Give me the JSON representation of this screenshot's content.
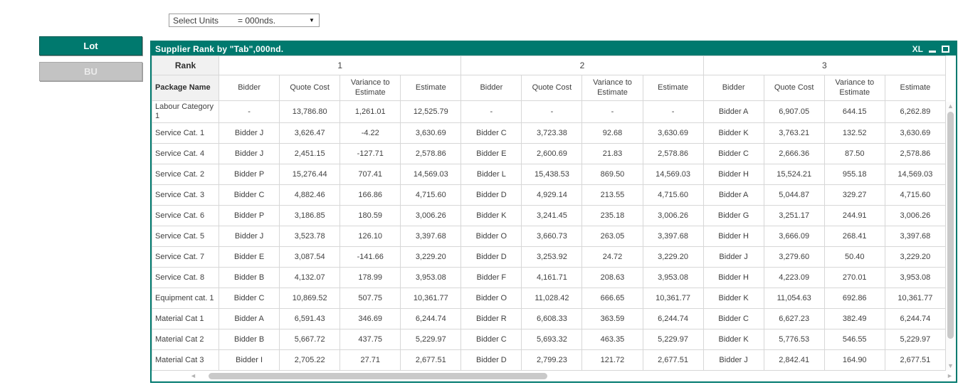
{
  "units_bar": {
    "label": "Select Units",
    "value": "= 000nds.",
    "dropdown_icon": "▼"
  },
  "sidebar": {
    "buttons": [
      {
        "label": "Lot",
        "active": true
      },
      {
        "label": "BU",
        "active": false
      }
    ]
  },
  "panel": {
    "title": "Supplier Rank by \"Tab\",000nd.",
    "window_controls": {
      "xl_label": "XL",
      "minimize_icon": "minimize",
      "maximize_icon": "maximize"
    }
  },
  "table": {
    "corner_header_row1": "Rank",
    "corner_header_row2": "Package Name",
    "rank_groups": [
      "1",
      "2",
      "3"
    ],
    "sub_headers": [
      "Bidder",
      "Quote Cost",
      "Variance to Estimate",
      "Estimate"
    ],
    "rows": [
      {
        "package": "Labour Category 1",
        "ranks": [
          [
            "-",
            "13,786.80",
            "1,261.01",
            "12,525.79"
          ],
          [
            "-",
            "-",
            "-",
            "-"
          ],
          [
            "Bidder A",
            "6,907.05",
            "644.15",
            "6,262.89"
          ]
        ]
      },
      {
        "package": "Service Cat. 1",
        "ranks": [
          [
            "Bidder J",
            "3,626.47",
            "-4.22",
            "3,630.69"
          ],
          [
            "Bidder C",
            "3,723.38",
            "92.68",
            "3,630.69"
          ],
          [
            "Bidder K",
            "3,763.21",
            "132.52",
            "3,630.69"
          ]
        ]
      },
      {
        "package": "Service Cat. 4",
        "ranks": [
          [
            "Bidder J",
            "2,451.15",
            "-127.71",
            "2,578.86"
          ],
          [
            "Bidder E",
            "2,600.69",
            "21.83",
            "2,578.86"
          ],
          [
            "Bidder C",
            "2,666.36",
            "87.50",
            "2,578.86"
          ]
        ]
      },
      {
        "package": "Service Cat. 2",
        "ranks": [
          [
            "Bidder P",
            "15,276.44",
            "707.41",
            "14,569.03"
          ],
          [
            "Bidder L",
            "15,438.53",
            "869.50",
            "14,569.03"
          ],
          [
            "Bidder H",
            "15,524.21",
            "955.18",
            "14,569.03"
          ]
        ]
      },
      {
        "package": "Service Cat. 3",
        "ranks": [
          [
            "Bidder C",
            "4,882.46",
            "166.86",
            "4,715.60"
          ],
          [
            "Bidder D",
            "4,929.14",
            "213.55",
            "4,715.60"
          ],
          [
            "Bidder A",
            "5,044.87",
            "329.27",
            "4,715.60"
          ]
        ]
      },
      {
        "package": "Service Cat. 6",
        "ranks": [
          [
            "Bidder P",
            "3,186.85",
            "180.59",
            "3,006.26"
          ],
          [
            "Bidder K",
            "3,241.45",
            "235.18",
            "3,006.26"
          ],
          [
            "Bidder G",
            "3,251.17",
            "244.91",
            "3,006.26"
          ]
        ]
      },
      {
        "package": "Service Cat. 5",
        "ranks": [
          [
            "Bidder J",
            "3,523.78",
            "126.10",
            "3,397.68"
          ],
          [
            "Bidder O",
            "3,660.73",
            "263.05",
            "3,397.68"
          ],
          [
            "Bidder H",
            "3,666.09",
            "268.41",
            "3,397.68"
          ]
        ]
      },
      {
        "package": "Service Cat. 7",
        "ranks": [
          [
            "Bidder E",
            "3,087.54",
            "-141.66",
            "3,229.20"
          ],
          [
            "Bidder D",
            "3,253.92",
            "24.72",
            "3,229.20"
          ],
          [
            "Bidder J",
            "3,279.60",
            "50.40",
            "3,229.20"
          ]
        ]
      },
      {
        "package": "Service Cat. 8",
        "ranks": [
          [
            "Bidder B",
            "4,132.07",
            "178.99",
            "3,953.08"
          ],
          [
            "Bidder F",
            "4,161.71",
            "208.63",
            "3,953.08"
          ],
          [
            "Bidder H",
            "4,223.09",
            "270.01",
            "3,953.08"
          ]
        ]
      },
      {
        "package": "Equipment cat. 1",
        "ranks": [
          [
            "Bidder C",
            "10,869.52",
            "507.75",
            "10,361.77"
          ],
          [
            "Bidder O",
            "11,028.42",
            "666.65",
            "10,361.77"
          ],
          [
            "Bidder K",
            "11,054.63",
            "692.86",
            "10,361.77"
          ]
        ]
      },
      {
        "package": "Material Cat 1",
        "ranks": [
          [
            "Bidder A",
            "6,591.43",
            "346.69",
            "6,244.74"
          ],
          [
            "Bidder R",
            "6,608.33",
            "363.59",
            "6,244.74"
          ],
          [
            "Bidder C",
            "6,627.23",
            "382.49",
            "6,244.74"
          ]
        ]
      },
      {
        "package": "Material Cat 2",
        "ranks": [
          [
            "Bidder B",
            "5,667.72",
            "437.75",
            "5,229.97"
          ],
          [
            "Bidder C",
            "5,693.32",
            "463.35",
            "5,229.97"
          ],
          [
            "Bidder K",
            "5,776.53",
            "546.55",
            "5,229.97"
          ]
        ]
      },
      {
        "package": "Material Cat 3",
        "ranks": [
          [
            "Bidder I",
            "2,705.22",
            "27.71",
            "2,677.51"
          ],
          [
            "Bidder D",
            "2,799.23",
            "121.72",
            "2,677.51"
          ],
          [
            "Bidder J",
            "2,842.41",
            "164.90",
            "2,677.51"
          ]
        ]
      }
    ]
  },
  "scrollbars": {
    "up_arrow": "▲",
    "down_arrow": "▼",
    "left_arrow": "◄",
    "right_arrow": "►"
  },
  "colors": {
    "accent_teal": "#00796E",
    "inactive_button_gray": "#C3C3C3",
    "grid_line": "#D7D7D7"
  }
}
